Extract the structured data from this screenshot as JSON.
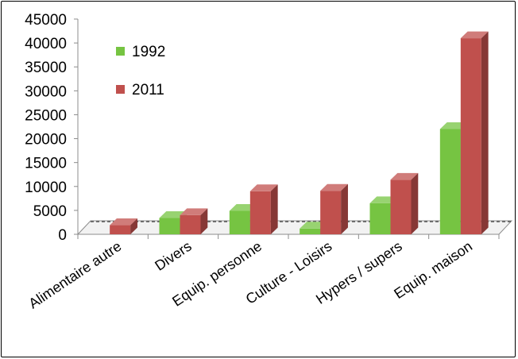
{
  "chart_data": {
    "type": "bar",
    "categories": [
      "Alimentaire autre",
      "Divers",
      "Equip. personne",
      "Culture - Loisirs",
      "Hypers / supers",
      "Equip. maison"
    ],
    "series": [
      {
        "name": "1992",
        "values": [
          0,
          3400,
          4900,
          1200,
          6500,
          22000
        ],
        "color": "#76c442"
      },
      {
        "name": "2011",
        "values": [
          1900,
          4000,
          9000,
          9100,
          11400,
          41000
        ],
        "color": "#c0504d"
      }
    ],
    "ylim": [
      0,
      45000
    ],
    "yticks": [
      0,
      5000,
      10000,
      15000,
      20000,
      25000,
      30000,
      35000,
      40000,
      45000
    ],
    "legend_position": "top-left",
    "grid": false,
    "style": "3d-column"
  }
}
